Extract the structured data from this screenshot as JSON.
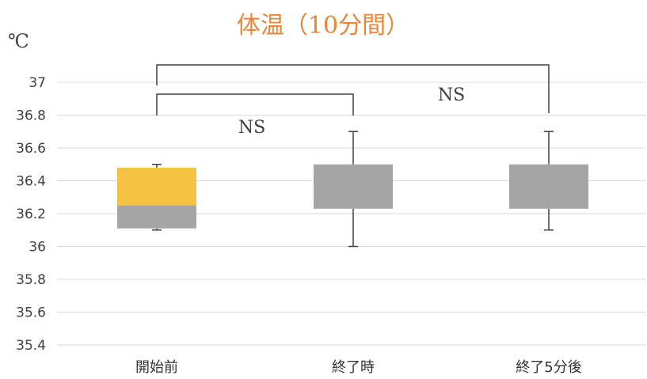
{
  "chart_data": {
    "type": "box",
    "title": "体温（10分間）",
    "ylabel": "℃",
    "ylim": [
      35.4,
      37
    ],
    "y_ticks": [
      "35.4",
      "35.6",
      "35.8",
      "36",
      "36.2",
      "36.4",
      "36.6",
      "36.8",
      "37"
    ],
    "grid": true,
    "categories": [
      "開始前",
      "終了時",
      "終了5分後"
    ],
    "boxes": [
      {
        "category": "開始前",
        "min": 36.1,
        "q1": 36.11,
        "median": 36.25,
        "q3": 36.48,
        "max": 36.5
      },
      {
        "category": "終了時",
        "min": 36.0,
        "q1": 36.23,
        "median": 36.23,
        "q3": 36.5,
        "max": 36.7
      },
      {
        "category": "終了5分後",
        "min": 36.1,
        "q1": 36.23,
        "median": 36.23,
        "q3": 36.5,
        "max": 36.7
      }
    ],
    "colors": {
      "lower_box": "#a5a5a5",
      "upper_box": "#f5c242",
      "grid": "#d9d9d9",
      "title": "#e8873a"
    },
    "significance": [
      {
        "from": "開始前",
        "to": "終了時",
        "label": "NS"
      },
      {
        "from": "開始前",
        "to": "終了5分後",
        "label": "NS"
      }
    ]
  }
}
